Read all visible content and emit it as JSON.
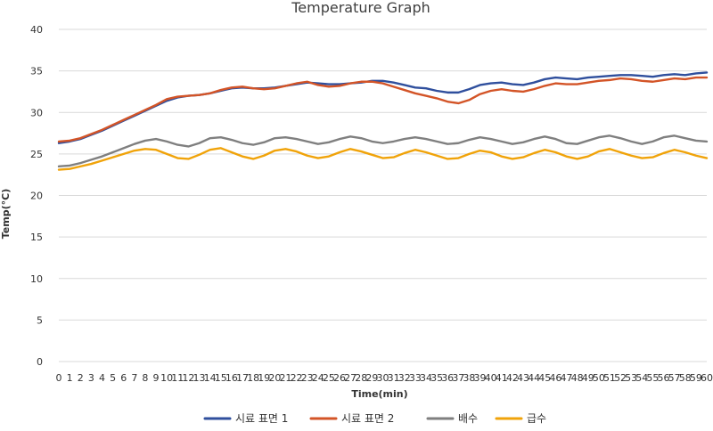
{
  "chart_data": {
    "type": "line",
    "title": "Temperature Graph",
    "xlabel": "Time(min)",
    "ylabel": "Temp(°C)",
    "xlim": [
      0,
      60
    ],
    "ylim": [
      0,
      40
    ],
    "yticks": [
      0,
      5,
      10,
      15,
      20,
      25,
      30,
      35,
      40
    ],
    "x": [
      0,
      1,
      2,
      3,
      4,
      5,
      6,
      7,
      8,
      9,
      10,
      11,
      12,
      13,
      14,
      15,
      16,
      17,
      18,
      19,
      20,
      21,
      22,
      23,
      24,
      25,
      26,
      27,
      28,
      29,
      30,
      31,
      32,
      33,
      34,
      35,
      36,
      37,
      38,
      39,
      40,
      41,
      42,
      43,
      44,
      45,
      46,
      47,
      48,
      49,
      50,
      51,
      52,
      53,
      54,
      55,
      56,
      57,
      58,
      59,
      60
    ],
    "grid": true,
    "legend_position": "bottom",
    "series": [
      {
        "name": "시료 표면 1",
        "color": "#2f4f9d",
        "values": [
          26.3,
          26.5,
          26.8,
          27.3,
          27.8,
          28.4,
          29.0,
          29.6,
          30.2,
          30.8,
          31.4,
          31.8,
          32.0,
          32.1,
          32.3,
          32.6,
          32.9,
          33.0,
          32.9,
          32.9,
          33.0,
          33.2,
          33.4,
          33.6,
          33.5,
          33.4,
          33.4,
          33.5,
          33.6,
          33.8,
          33.8,
          33.6,
          33.3,
          33.0,
          32.9,
          32.6,
          32.4,
          32.4,
          32.8,
          33.3,
          33.5,
          33.6,
          33.4,
          33.3,
          33.6,
          34.0,
          34.2,
          34.1,
          34.0,
          34.2,
          34.3,
          34.4,
          34.5,
          34.5,
          34.4,
          34.3,
          34.5,
          34.6,
          34.5,
          34.7,
          34.8
        ]
      },
      {
        "name": "시료 표면 2",
        "color": "#d35427",
        "values": [
          26.5,
          26.6,
          26.9,
          27.4,
          27.9,
          28.5,
          29.1,
          29.7,
          30.3,
          30.9,
          31.6,
          31.9,
          32.0,
          32.1,
          32.3,
          32.7,
          33.0,
          33.1,
          32.9,
          32.8,
          32.9,
          33.2,
          33.5,
          33.7,
          33.3,
          33.1,
          33.2,
          33.5,
          33.7,
          33.7,
          33.5,
          33.1,
          32.7,
          32.3,
          32.0,
          31.7,
          31.3,
          31.1,
          31.5,
          32.2,
          32.6,
          32.8,
          32.6,
          32.5,
          32.8,
          33.2,
          33.5,
          33.4,
          33.4,
          33.6,
          33.8,
          33.9,
          34.1,
          34.0,
          33.8,
          33.7,
          33.9,
          34.1,
          34.0,
          34.2,
          34.2
        ]
      },
      {
        "name": "배수",
        "color": "#7f7f7f",
        "values": [
          23.5,
          23.6,
          23.9,
          24.3,
          24.7,
          25.2,
          25.7,
          26.2,
          26.6,
          26.8,
          26.5,
          26.1,
          25.9,
          26.3,
          26.9,
          27.0,
          26.7,
          26.3,
          26.1,
          26.4,
          26.9,
          27.0,
          26.8,
          26.5,
          26.2,
          26.4,
          26.8,
          27.1,
          26.9,
          26.5,
          26.3,
          26.5,
          26.8,
          27.0,
          26.8,
          26.5,
          26.2,
          26.3,
          26.7,
          27.0,
          26.8,
          26.5,
          26.2,
          26.4,
          26.8,
          27.1,
          26.8,
          26.3,
          26.2,
          26.6,
          27.0,
          27.2,
          26.9,
          26.5,
          26.2,
          26.5,
          27.0,
          27.2,
          26.9,
          26.6,
          26.5
        ]
      },
      {
        "name": "급수",
        "color": "#f0a30a",
        "values": [
          23.1,
          23.2,
          23.5,
          23.8,
          24.2,
          24.6,
          25.0,
          25.4,
          25.6,
          25.5,
          25.0,
          24.5,
          24.4,
          24.9,
          25.5,
          25.7,
          25.2,
          24.7,
          24.4,
          24.8,
          25.4,
          25.6,
          25.3,
          24.8,
          24.5,
          24.7,
          25.2,
          25.6,
          25.3,
          24.9,
          24.5,
          24.6,
          25.1,
          25.5,
          25.2,
          24.8,
          24.4,
          24.5,
          25.0,
          25.4,
          25.2,
          24.7,
          24.4,
          24.6,
          25.1,
          25.5,
          25.2,
          24.7,
          24.4,
          24.7,
          25.3,
          25.6,
          25.2,
          24.8,
          24.5,
          24.6,
          25.1,
          25.5,
          25.2,
          24.8,
          24.5
        ]
      }
    ]
  }
}
